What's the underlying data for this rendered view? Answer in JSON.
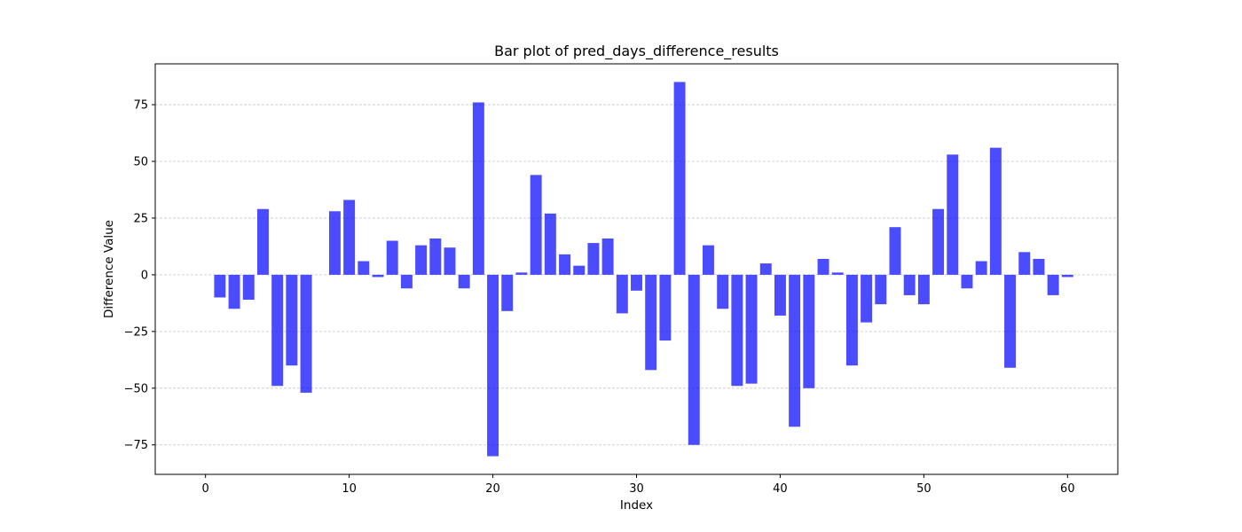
{
  "chart_data": {
    "type": "bar",
    "title": "Bar plot of pred_days_difference_results",
    "xlabel": "Index",
    "ylabel": "Difference Value",
    "xlim": [
      -3.5,
      63.5
    ],
    "ylim": [
      -88,
      93
    ],
    "xticks": [
      0,
      10,
      20,
      30,
      40,
      50,
      60
    ],
    "yticks": [
      -75,
      -50,
      -25,
      0,
      25,
      50,
      75
    ],
    "grid": "horizontal dashed",
    "bar_color": "#0000ff",
    "bar_alpha": 0.7,
    "x": [
      1,
      2,
      3,
      4,
      5,
      6,
      7,
      8,
      9,
      10,
      11,
      12,
      13,
      14,
      15,
      16,
      17,
      18,
      19,
      20,
      21,
      22,
      23,
      24,
      25,
      26,
      27,
      28,
      29,
      30,
      31,
      32,
      33,
      34,
      35,
      36,
      37,
      38,
      39,
      40,
      41,
      42,
      43,
      44,
      45,
      46,
      47,
      48,
      49,
      50,
      51,
      52,
      53,
      54,
      55,
      56,
      57,
      58,
      59,
      60
    ],
    "values": [
      -10,
      -15,
      -11,
      29,
      -49,
      -40,
      -52,
      0,
      28,
      33,
      6,
      -1,
      15,
      -6,
      13,
      16,
      12,
      -6,
      76,
      -80,
      -16,
      1,
      44,
      27,
      9,
      4,
      14,
      16,
      -17,
      -7,
      -42,
      -29,
      85,
      -75,
      13,
      -15,
      -49,
      -48,
      5,
      -18,
      -67,
      -50,
      7,
      1,
      -40,
      -21,
      -13,
      21,
      -9,
      -13,
      29,
      53,
      -6,
      6,
      56,
      -41,
      10,
      7,
      -9,
      -1
    ]
  }
}
